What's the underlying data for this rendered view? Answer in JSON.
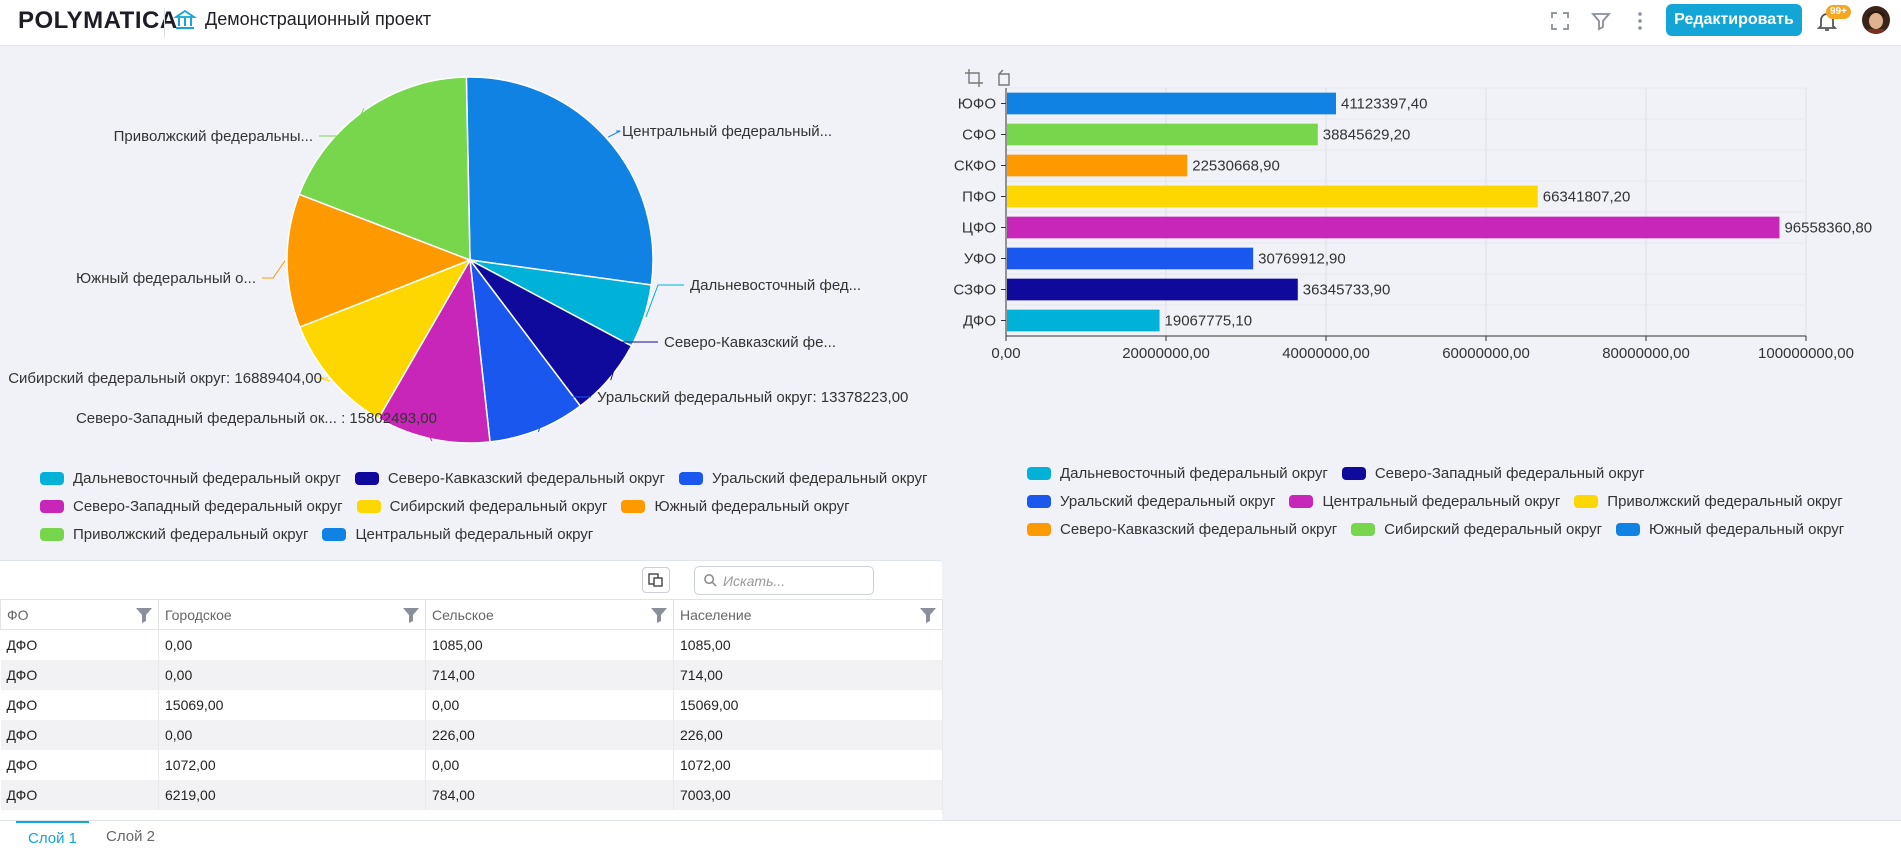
{
  "header": {
    "logo_text": "POLYMATICA",
    "project_title": "Демонстрационный проект",
    "edit_label": "Редактировать",
    "notif_badge": "99+",
    "icons": [
      "fullscreen-icon",
      "filter-icon",
      "more-vertical-icon",
      "bell-icon"
    ]
  },
  "pie": {
    "labels": [
      "Центральный федеральный...",
      "Дальневосточный фед...",
      "Северо-Кавказский фе...",
      "Уральский федеральный округ: 13378223,00",
      "Северо-Западный федеральный ок... : 15802493,00",
      "Сибирский федеральный округ: 16889404,00",
      "Южный федеральный о...",
      "Приволжский федеральны..."
    ],
    "legend": [
      {
        "label": "Дальневосточный федеральный округ",
        "color": "#00b1d8"
      },
      {
        "label": "Северо-Кавказский федеральный округ",
        "color": "#0f0a9b"
      },
      {
        "label": "Уральский федеральный округ",
        "color": "#1a57ee"
      },
      {
        "label": "Северо-Западный федеральный округ",
        "color": "#c726b8"
      },
      {
        "label": "Сибирский федеральный округ",
        "color": "#ffd700"
      },
      {
        "label": "Южный федеральный округ",
        "color": "#ff9900"
      },
      {
        "label": "Приволжский федеральный округ",
        "color": "#77d64b"
      },
      {
        "label": "Центральный федеральный округ",
        "color": "#0f82e3"
      }
    ]
  },
  "chart_data": [
    {
      "type": "pie",
      "slices": [
        {
          "name": "Центральный федеральный округ",
          "value": 27.0,
          "color": "#0f82e3"
        },
        {
          "name": "Дальневосточный федеральный округ",
          "value": 5.5,
          "color": "#00b1d8"
        },
        {
          "name": "Северо-Кавказский федеральный округ",
          "value": 6.8,
          "color": "#0f0a9b"
        },
        {
          "name": "Уральский федеральный округ",
          "value": 13378223,
          "color": "#1a57ee"
        },
        {
          "name": "Северо-Западный федеральный округ",
          "value": 15802493,
          "color": "#c726b8"
        },
        {
          "name": "Сибирский федеральный округ",
          "value": 16889404,
          "color": "#ffd700"
        },
        {
          "name": "Южный федеральный округ",
          "value": 11.6,
          "color": "#ff9900"
        },
        {
          "name": "Приволжский федеральный округ",
          "value": 18.5,
          "color": "#77d64b"
        }
      ]
    },
    {
      "type": "bar",
      "orientation": "horizontal",
      "categories": [
        "ЮФО",
        "СФО",
        "СКФО",
        "ПФО",
        "ЦФО",
        "УФО",
        "СЗФО",
        "ДФО"
      ],
      "values": [
        41123397.4,
        38845629.2,
        22530668.9,
        66341807.2,
        96558360.8,
        30769912.9,
        36345733.9,
        19067775.1
      ],
      "value_labels": [
        "41123397,40",
        "38845629,20",
        "22530668,90",
        "66341807,20",
        "96558360,80",
        "30769912,90",
        "36345733,90",
        "19067775,10"
      ],
      "colors": [
        "#0f82e3",
        "#77d64b",
        "#ff9900",
        "#ffd700",
        "#c726b8",
        "#1a57ee",
        "#0f0a9b",
        "#00b1d8"
      ],
      "xlim": [
        0,
        100000000
      ],
      "x_ticks": [
        0,
        20000000,
        40000000,
        60000000,
        80000000,
        100000000
      ],
      "x_tick_labels": [
        "0,00",
        "20000000,00",
        "40000000,00",
        "60000000,00",
        "80000000,00",
        "100000000,00"
      ],
      "grid": true,
      "legend_position": "bottom",
      "legend": [
        {
          "label": "Дальневосточный федеральный округ",
          "color": "#00b1d8"
        },
        {
          "label": "Северо-Западный федеральный округ",
          "color": "#0f0a9b"
        },
        {
          "label": "Уральский федеральный округ",
          "color": "#1a57ee"
        },
        {
          "label": "Центральный федеральный округ",
          "color": "#c726b8"
        },
        {
          "label": "Приволжский федеральный округ",
          "color": "#ffd700"
        },
        {
          "label": "Северо-Кавказский федеральный округ",
          "color": "#ff9900"
        },
        {
          "label": "Сибирский федеральный округ",
          "color": "#77d64b"
        },
        {
          "label": "Южный федеральный округ",
          "color": "#0f82e3"
        }
      ]
    }
  ],
  "table": {
    "search_placeholder": "Искать...",
    "columns": [
      "ФО",
      "Городское",
      "Сельское",
      "Население"
    ],
    "rows": [
      [
        "ДФО",
        "0,00",
        "1085,00",
        "1085,00"
      ],
      [
        "ДФО",
        "0,00",
        "714,00",
        "714,00"
      ],
      [
        "ДФО",
        "15069,00",
        "0,00",
        "15069,00"
      ],
      [
        "ДФО",
        "0,00",
        "226,00",
        "226,00"
      ],
      [
        "ДФО",
        "1072,00",
        "0,00",
        "1072,00"
      ],
      [
        "ДФО",
        "6219,00",
        "784,00",
        "7003,00"
      ]
    ]
  },
  "layers": [
    {
      "label": "Слой 1",
      "active": true
    },
    {
      "label": "Слой 2",
      "active": false
    }
  ]
}
